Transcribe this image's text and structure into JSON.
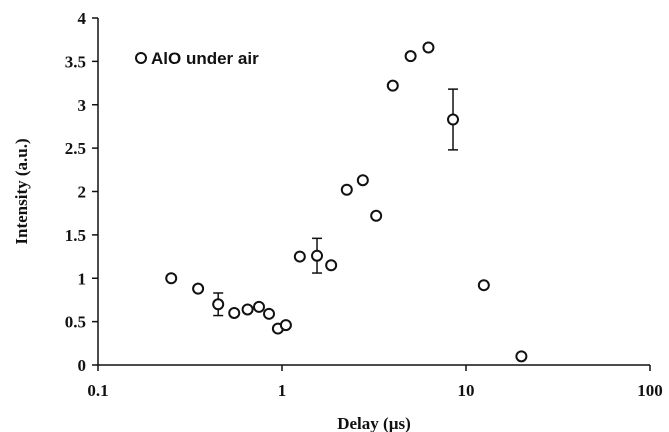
{
  "chart_data": {
    "type": "scatter",
    "title": "",
    "xlabel": "Delay (µs)",
    "ylabel": "Intensity (a.u.)",
    "xscale": "log",
    "xlim": [
      0.1,
      100
    ],
    "ylim": [
      0,
      4
    ],
    "x_ticks": [
      0.1,
      1,
      10,
      100
    ],
    "x_tick_labels": [
      "0.1",
      "1",
      "10",
      "100"
    ],
    "y_ticks": [
      0,
      0.5,
      1,
      1.5,
      2,
      2.5,
      3,
      3.5,
      4
    ],
    "y_tick_labels": [
      "0",
      "0.5",
      "1",
      "1.5",
      "2",
      "2.5",
      "3",
      "3.5",
      "4"
    ],
    "grid": false,
    "legend_position": "top-left",
    "series": [
      {
        "name": "AlO under air",
        "marker": "open-circle",
        "color": "#111111",
        "points": [
          {
            "x": 0.25,
            "y": 1.0
          },
          {
            "x": 0.35,
            "y": 0.88
          },
          {
            "x": 0.45,
            "y": 0.7,
            "err": 0.13
          },
          {
            "x": 0.55,
            "y": 0.6
          },
          {
            "x": 0.65,
            "y": 0.64
          },
          {
            "x": 0.75,
            "y": 0.67
          },
          {
            "x": 0.85,
            "y": 0.59
          },
          {
            "x": 0.95,
            "y": 0.42
          },
          {
            "x": 1.05,
            "y": 0.46
          },
          {
            "x": 1.25,
            "y": 1.25
          },
          {
            "x": 1.55,
            "y": 1.26,
            "err": 0.2
          },
          {
            "x": 1.85,
            "y": 1.15
          },
          {
            "x": 2.25,
            "y": 2.02
          },
          {
            "x": 2.75,
            "y": 2.13
          },
          {
            "x": 3.25,
            "y": 1.72
          },
          {
            "x": 4.0,
            "y": 3.22
          },
          {
            "x": 5.0,
            "y": 3.56
          },
          {
            "x": 6.25,
            "y": 3.66
          },
          {
            "x": 8.5,
            "y": 2.83,
            "err": 0.35
          },
          {
            "x": 12.5,
            "y": 0.92
          },
          {
            "x": 20.0,
            "y": 0.1
          }
        ]
      }
    ]
  }
}
